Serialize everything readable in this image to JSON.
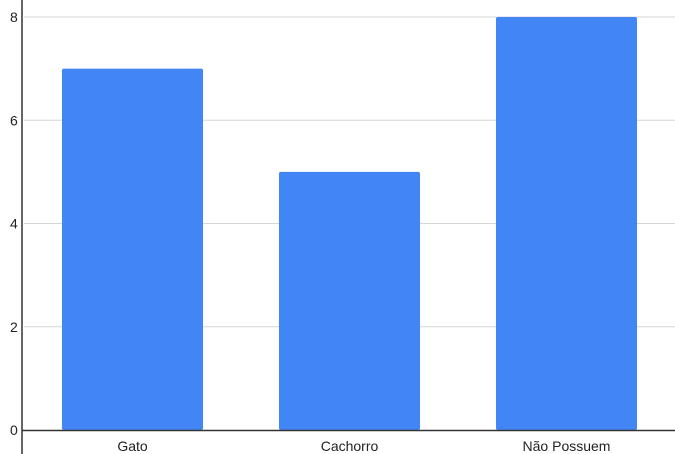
{
  "chart_data": {
    "type": "bar",
    "categories": [
      "Gato",
      "Cachorro",
      "Não Possuem"
    ],
    "values": [
      7,
      5,
      8
    ],
    "ylim": [
      0,
      8
    ],
    "y_ticks": [
      0,
      2,
      4,
      6,
      8
    ],
    "grid": true,
    "legend": "none",
    "colors": {
      "bar": "#4285f4",
      "grid": "#d6d6d6",
      "axis": "#333333",
      "text": "#222222"
    }
  }
}
